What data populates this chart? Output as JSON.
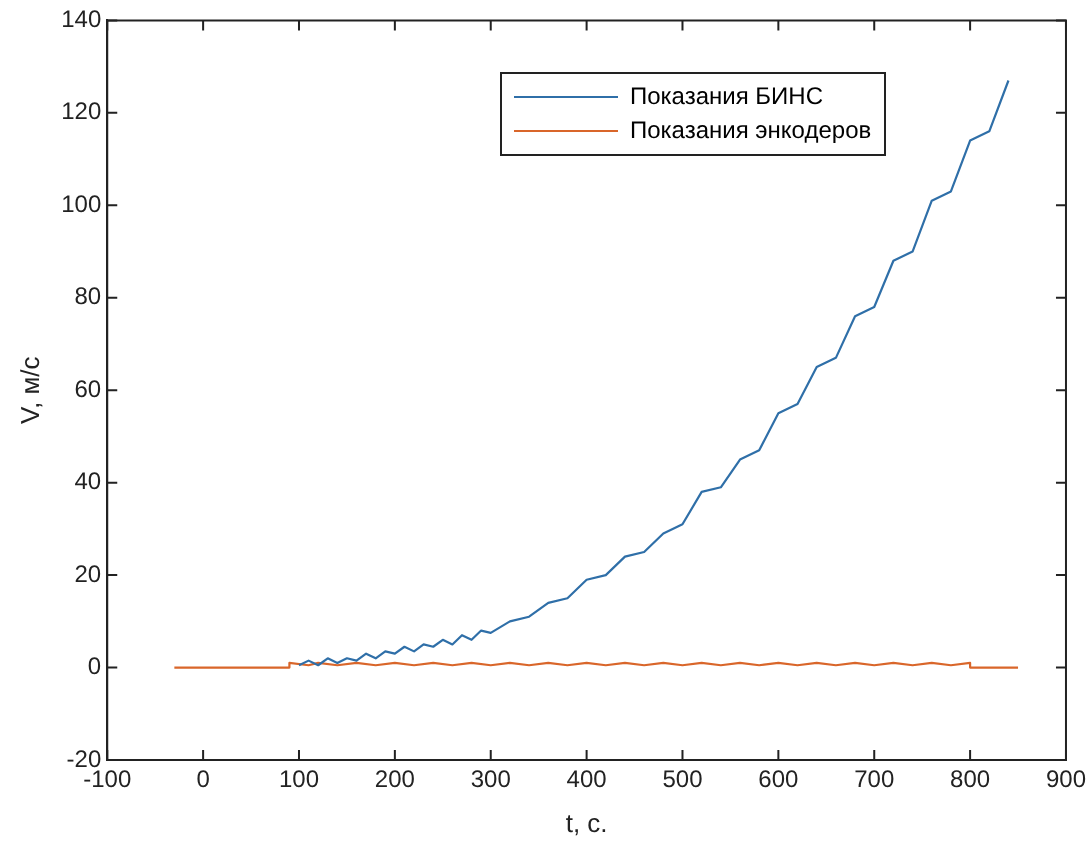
{
  "chart_data": {
    "type": "line",
    "xlabel": "t, с.",
    "ylabel": "V, м/с",
    "xlim": [
      -100,
      900
    ],
    "ylim": [
      -20,
      140
    ],
    "xticks": [
      -100,
      0,
      100,
      200,
      300,
      400,
      500,
      600,
      700,
      800,
      900
    ],
    "yticks": [
      -20,
      0,
      20,
      40,
      60,
      80,
      100,
      120,
      140
    ],
    "grid": false,
    "legend": "top right",
    "marker": "none",
    "line_style": "solid",
    "series": [
      {
        "name": "Показания БИНС",
        "color": "#2f6fa8",
        "x": [
          100,
          110,
          120,
          130,
          140,
          150,
          160,
          170,
          180,
          190,
          200,
          210,
          220,
          230,
          240,
          250,
          260,
          270,
          280,
          290,
          300,
          320,
          340,
          360,
          380,
          400,
          420,
          440,
          460,
          480,
          500,
          520,
          540,
          560,
          580,
          600,
          620,
          640,
          660,
          680,
          700,
          720,
          740,
          760,
          780,
          800,
          820,
          840
        ],
        "values": [
          0.5,
          1.5,
          0.5,
          2,
          1,
          2,
          1.5,
          3,
          2,
          3.5,
          3,
          4.5,
          3.5,
          5,
          4.5,
          6,
          5,
          7,
          6,
          8,
          7.5,
          10,
          11,
          14,
          15,
          19,
          20,
          24,
          25,
          29,
          31,
          38,
          39,
          45,
          47,
          55,
          57,
          65,
          67,
          76,
          78,
          88,
          90,
          101,
          103,
          114,
          116,
          127
        ]
      },
      {
        "name": "Показания энкодеров",
        "color": "#d9662a",
        "x": [
          -30,
          90,
          90,
          110,
          120,
          140,
          160,
          180,
          200,
          220,
          240,
          260,
          280,
          300,
          320,
          340,
          360,
          380,
          400,
          420,
          440,
          460,
          480,
          500,
          520,
          540,
          560,
          580,
          600,
          620,
          640,
          660,
          680,
          700,
          720,
          740,
          760,
          780,
          800,
          800,
          850
        ],
        "values": [
          0,
          0,
          1,
          0.5,
          1,
          0.5,
          1,
          0.5,
          1,
          0.5,
          1,
          0.5,
          1,
          0.5,
          1,
          0.5,
          1,
          0.5,
          1,
          0.5,
          1,
          0.5,
          1,
          0.5,
          1,
          0.5,
          1,
          0.5,
          1,
          0.5,
          1,
          0.5,
          1,
          0.5,
          1,
          0.5,
          1,
          0.5,
          1,
          0,
          0
        ]
      }
    ]
  }
}
